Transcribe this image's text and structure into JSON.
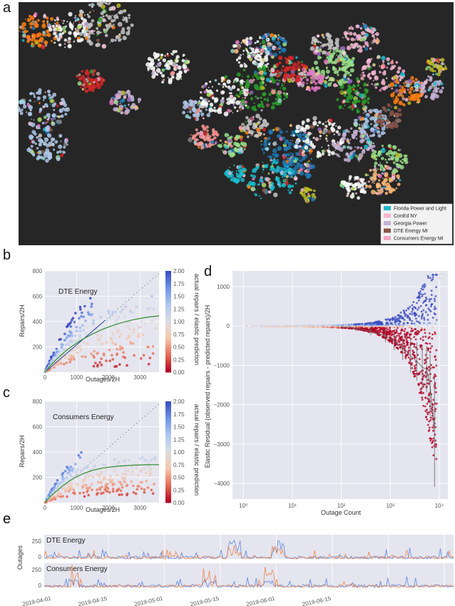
{
  "panels": {
    "a": "a",
    "b": "b",
    "c": "c",
    "d": "d",
    "e": "e"
  },
  "chart_data": [
    {
      "id": "a",
      "type": "map",
      "legend": [
        {
          "label": "Florida Power and Light",
          "color": "#1fb8c9"
        },
        {
          "label": "ConEd NY",
          "color": "#f7b6d2"
        },
        {
          "label": "Georgia Power",
          "color": "#c5b0d5"
        },
        {
          "label": "DTE Energy MI",
          "color": "#8c564b"
        },
        {
          "label": "Consumers Energy MI",
          "color": "#f2a7c8"
        }
      ]
    },
    {
      "id": "b",
      "type": "scatter",
      "label": "DTE Energy",
      "xlabel": "Outages/2H",
      "ylabel": "Repairs/2H",
      "xlim": [
        0,
        3600
      ],
      "ylim": [
        0,
        800
      ],
      "xticks": [
        "0",
        "1000",
        "2000",
        "3000"
      ],
      "yticks": [
        "200",
        "400",
        "600",
        "800"
      ],
      "colorbar_label": "actual repairs / elastic prediction",
      "colorbar_ticks": [
        "0.00",
        "0.25",
        "0.50",
        "0.75",
        "1.00",
        "1.25",
        "1.50",
        "1.75",
        "2.00"
      ],
      "fit_curve_x": [
        0,
        200,
        400,
        600,
        800,
        1000,
        1200,
        1500,
        1800,
        2100,
        2400,
        2800,
        3200,
        3600
      ],
      "fit_curve_y": [
        0,
        60,
        110,
        155,
        195,
        230,
        262,
        302,
        337,
        365,
        390,
        415,
        433,
        445
      ],
      "linear_line_x": [
        0,
        1900
      ],
      "linear_line_y": [
        0,
        410
      ],
      "diagonal_x": [
        0,
        3600
      ],
      "diagonal_y": [
        0,
        780
      ]
    },
    {
      "id": "c",
      "type": "scatter",
      "label": "Consumers Energy",
      "xlabel": "Outages/2H",
      "ylabel": "Repairs/2H",
      "xlim": [
        0,
        3600
      ],
      "ylim": [
        0,
        800
      ],
      "xticks": [
        "0",
        "1000",
        "2000",
        "3000"
      ],
      "yticks": [
        "200",
        "400",
        "600",
        "800"
      ],
      "colorbar_label": "actual repairs / elastic prediction",
      "colorbar_ticks": [
        "0.00",
        "0.25",
        "0.50",
        "0.75",
        "1.00",
        "1.25",
        "1.50",
        "1.75",
        "2.00"
      ],
      "fit_curve_x": [
        0,
        200,
        400,
        600,
        800,
        1000,
        1200,
        1500,
        1800,
        2100,
        2400,
        2800,
        3200,
        3600
      ],
      "fit_curve_y": [
        0,
        55,
        100,
        140,
        175,
        205,
        228,
        255,
        272,
        283,
        290,
        296,
        299,
        300
      ],
      "diagonal_x": [
        0,
        3600
      ],
      "diagonal_y": [
        0,
        780
      ]
    },
    {
      "id": "d",
      "type": "scatter",
      "xlabel": "Outage Count",
      "ylabel": "Elastic Residual (observed repairs - predicted repairs)/2H",
      "xscale": "log",
      "xlim": [
        0.6,
        15000
      ],
      "ylim": [
        -4400,
        1400
      ],
      "xticks": [
        "10⁰",
        "10¹",
        "10²",
        "10³",
        "10⁴"
      ],
      "yticks": [
        "1000",
        "0",
        "−1000",
        "−2000",
        "−3000",
        "−4000"
      ],
      "median_x": [
        100,
        200,
        400,
        800,
        1200,
        1800,
        2600,
        3500,
        4500,
        5500,
        6500,
        8000
      ],
      "median_y": [
        -20,
        -60,
        -130,
        -250,
        -380,
        -550,
        -760,
        -900,
        -1050,
        -1100,
        -1500,
        -2700
      ]
    },
    {
      "id": "e",
      "type": "line",
      "ylabel": "Outages",
      "subplots": [
        "DTE Energy",
        "Consumers Energy"
      ],
      "yticks": [
        "250",
        "0"
      ],
      "xticks": [
        "2019-04-01",
        "2019-04-15",
        "2019-05-01",
        "2019-05-15",
        "2019-06-01",
        "2019-06-15"
      ]
    }
  ]
}
